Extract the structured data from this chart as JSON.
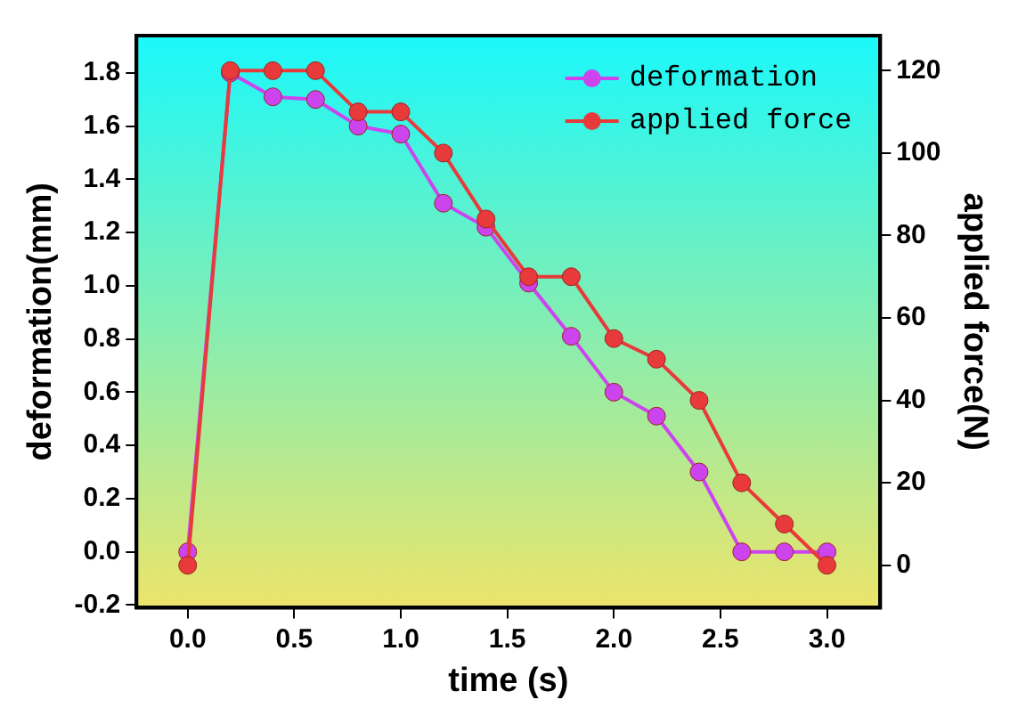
{
  "chart_data": {
    "type": "line",
    "xlabel": "time (s)",
    "ylabel": "deformation(mm)",
    "y2label": "applied force(N)",
    "x": [
      0,
      0.2,
      0.4,
      0.6,
      0.8,
      1.0,
      1.2,
      1.4,
      1.6,
      1.8,
      2.0,
      2.2,
      2.4,
      2.6,
      2.8,
      3.0
    ],
    "series": [
      {
        "name": "deformation",
        "color": "#cc44ee",
        "values": [
          0,
          1.8,
          1.71,
          1.7,
          1.6,
          1.57,
          1.31,
          1.22,
          1.01,
          0.81,
          0.6,
          0.51,
          0.3,
          0,
          0,
          0
        ]
      },
      {
        "name": "applied force",
        "color": "#e83a3a",
        "axis": "y2",
        "values": [
          0,
          120,
          120,
          120,
          110,
          110,
          100,
          84,
          70,
          70,
          55,
          50,
          40,
          20,
          10,
          0
        ]
      }
    ],
    "xlim": [
      -0.24,
      3.25
    ],
    "xticks": [
      {
        "value": 0,
        "label": "0.0"
      },
      {
        "value": 0.5,
        "label": "0.5"
      },
      {
        "value": 1,
        "label": "1.0"
      },
      {
        "value": 1.5,
        "label": "1.5"
      },
      {
        "value": 2,
        "label": "2.0"
      },
      {
        "value": 2.5,
        "label": "2.5"
      },
      {
        "value": 3,
        "label": "3.0"
      }
    ],
    "ylim": [
      -0.21,
      1.94
    ],
    "yticks": [
      {
        "value": -0.2,
        "label": "-0.2"
      },
      {
        "value": 0,
        "label": "0.0"
      },
      {
        "value": 0.2,
        "label": "0.2"
      },
      {
        "value": 0.4,
        "label": "0.4"
      },
      {
        "value": 0.6,
        "label": "0.6"
      },
      {
        "value": 0.8,
        "label": "0.8"
      },
      {
        "value": 1,
        "label": "1.0"
      },
      {
        "value": 1.2,
        "label": "1.2"
      },
      {
        "value": 1.4,
        "label": "1.4"
      },
      {
        "value": 1.6,
        "label": "1.6"
      },
      {
        "value": 1.8,
        "label": "1.8"
      }
    ],
    "y2lim": [
      -10.3,
      128.5
    ],
    "y2ticks": [
      0,
      20,
      40,
      60,
      80,
      100,
      120
    ],
    "marker": "circle",
    "line_style": "solid",
    "legend": "top right",
    "grid": false
  }
}
